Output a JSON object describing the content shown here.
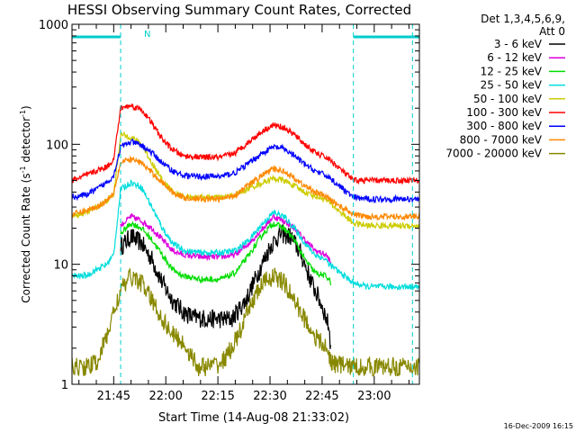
{
  "chart_data": {
    "type": "line",
    "title": "HESSI Observing Summary Count Rates, Corrected",
    "xlabel": "Start Time (14-Aug-08 21:33:02)",
    "ylabel": "Corrected Count Rate (s",
    "ylabel_sup1": "-1",
    "ylabel_mid": " detector",
    "ylabel_sup2": "-1",
    "ylabel_end": ")",
    "yscale": "log",
    "ylim": [
      1,
      1000
    ],
    "xlim": [
      "21:33",
      "23:13"
    ],
    "xticks": [
      {
        "t": 105,
        "label": "21:45"
      },
      {
        "t": 120,
        "label": "22:00"
      },
      {
        "t": 135,
        "label": "22:15"
      },
      {
        "t": 150,
        "label": "22:30"
      },
      {
        "t": 165,
        "label": "22:45"
      },
      {
        "t": 180,
        "label": "23:00"
      }
    ],
    "yticks": [
      {
        "v": 1,
        "label": "1"
      },
      {
        "v": 10,
        "label": "10"
      },
      {
        "v": 100,
        "label": "100"
      },
      {
        "v": 1000,
        "label": "1000"
      }
    ],
    "legend_title_line1": "Det 1,3,4,5,6,9,",
    "legend_title_line2": "Att 0",
    "legend_position": "outside-right",
    "annotation_n": "N",
    "night_intervals": [
      [
        93,
        107
      ],
      [
        174,
        193
      ]
    ],
    "vertical_markers_t": [
      107,
      174,
      191
    ],
    "footer_date": "16-Dec-2009 16:15",
    "series": [
      {
        "name": "3 - 6 keV",
        "color": "#000000",
        "points": [
          [
            107,
            14
          ],
          [
            110,
            17
          ],
          [
            113,
            15
          ],
          [
            116,
            11
          ],
          [
            119,
            7
          ],
          [
            122,
            5
          ],
          [
            125,
            4
          ],
          [
            128,
            3.6
          ],
          [
            133,
            3.5
          ],
          [
            139,
            3.5
          ],
          [
            143,
            5
          ],
          [
            147,
            9
          ],
          [
            150,
            14
          ],
          [
            153,
            18
          ],
          [
            156,
            17
          ],
          [
            159,
            12
          ],
          [
            162,
            7
          ],
          [
            165,
            4.5
          ],
          [
            167,
            3
          ],
          [
            167.5,
            2
          ]
        ]
      },
      {
        "name": "6 - 12 keV",
        "color": "#dd00dd",
        "points": [
          [
            107,
            21
          ],
          [
            110,
            25
          ],
          [
            113,
            23
          ],
          [
            116,
            20
          ],
          [
            119,
            16
          ],
          [
            122,
            13
          ],
          [
            125,
            12
          ],
          [
            130,
            11.5
          ],
          [
            136,
            11.5
          ],
          [
            140,
            12
          ],
          [
            144,
            15
          ],
          [
            148,
            20
          ],
          [
            151,
            25
          ],
          [
            154,
            23
          ],
          [
            157,
            20
          ],
          [
            160,
            16
          ],
          [
            163,
            13
          ],
          [
            166,
            12
          ],
          [
            167,
            11
          ],
          [
            167.5,
            10
          ]
        ]
      },
      {
        "name": "12 - 25 keV",
        "color": "#00dd00",
        "points": [
          [
            107,
            18
          ],
          [
            110,
            22
          ],
          [
            113,
            20
          ],
          [
            116,
            16
          ],
          [
            119,
            12
          ],
          [
            122,
            9
          ],
          [
            125,
            8
          ],
          [
            130,
            7.5
          ],
          [
            136,
            7.5
          ],
          [
            140,
            8.5
          ],
          [
            144,
            12
          ],
          [
            148,
            18
          ],
          [
            151,
            22
          ],
          [
            154,
            20
          ],
          [
            157,
            16
          ],
          [
            160,
            11
          ],
          [
            163,
            8.5
          ],
          [
            166,
            8
          ],
          [
            167,
            7.5
          ],
          [
            167.5,
            7
          ]
        ]
      },
      {
        "name": "25 - 50 keV",
        "color": "#00dddd",
        "points": [
          [
            93,
            8
          ],
          [
            97,
            8
          ],
          [
            100,
            9
          ],
          [
            103,
            10
          ],
          [
            105,
            12
          ],
          [
            107,
            42
          ],
          [
            110,
            48
          ],
          [
            113,
            44
          ],
          [
            116,
            30
          ],
          [
            119,
            20
          ],
          [
            122,
            15
          ],
          [
            125,
            13
          ],
          [
            130,
            12.5
          ],
          [
            136,
            12.5
          ],
          [
            140,
            13
          ],
          [
            144,
            16
          ],
          [
            148,
            22
          ],
          [
            151,
            27
          ],
          [
            154,
            25
          ],
          [
            157,
            20
          ],
          [
            160,
            15
          ],
          [
            163,
            12
          ],
          [
            166,
            11
          ],
          [
            167,
            10
          ],
          [
            174,
            7
          ],
          [
            178,
            6.5
          ],
          [
            185,
            6.5
          ],
          [
            193,
            6.5
          ]
        ]
      },
      {
        "name": "50 - 100 keV",
        "color": "#cccc00",
        "points": [
          [
            93,
            25
          ],
          [
            97,
            27
          ],
          [
            100,
            30
          ],
          [
            103,
            34
          ],
          [
            105,
            38
          ],
          [
            107,
            120
          ],
          [
            110,
            115
          ],
          [
            113,
            100
          ],
          [
            116,
            70
          ],
          [
            119,
            50
          ],
          [
            122,
            40
          ],
          [
            125,
            37
          ],
          [
            130,
            36
          ],
          [
            136,
            36
          ],
          [
            140,
            38
          ],
          [
            144,
            43
          ],
          [
            148,
            48
          ],
          [
            151,
            52
          ],
          [
            154,
            50
          ],
          [
            157,
            45
          ],
          [
            160,
            40
          ],
          [
            163,
            37
          ],
          [
            166,
            35
          ],
          [
            167,
            33
          ],
          [
            174,
            22
          ],
          [
            178,
            21
          ],
          [
            185,
            21
          ],
          [
            193,
            21
          ]
        ]
      },
      {
        "name": "100 - 300 keV",
        "color": "#ff0000",
        "points": [
          [
            93,
            50
          ],
          [
            97,
            55
          ],
          [
            100,
            60
          ],
          [
            103,
            65
          ],
          [
            105,
            75
          ],
          [
            107,
            200
          ],
          [
            110,
            210
          ],
          [
            113,
            195
          ],
          [
            116,
            150
          ],
          [
            119,
            110
          ],
          [
            122,
            90
          ],
          [
            125,
            80
          ],
          [
            130,
            78
          ],
          [
            136,
            78
          ],
          [
            140,
            85
          ],
          [
            144,
            105
          ],
          [
            148,
            130
          ],
          [
            151,
            145
          ],
          [
            154,
            138
          ],
          [
            157,
            120
          ],
          [
            160,
            100
          ],
          [
            163,
            85
          ],
          [
            166,
            78
          ],
          [
            167,
            75
          ],
          [
            174,
            50
          ],
          [
            178,
            50
          ],
          [
            185,
            50
          ],
          [
            193,
            50
          ]
        ]
      },
      {
        "name": "300 - 800 keV",
        "color": "#0000ff",
        "points": [
          [
            93,
            36
          ],
          [
            97,
            38
          ],
          [
            100,
            42
          ],
          [
            103,
            48
          ],
          [
            105,
            55
          ],
          [
            107,
            95
          ],
          [
            110,
            105
          ],
          [
            113,
            98
          ],
          [
            116,
            85
          ],
          [
            119,
            70
          ],
          [
            122,
            60
          ],
          [
            125,
            55
          ],
          [
            130,
            54
          ],
          [
            136,
            54
          ],
          [
            140,
            58
          ],
          [
            144,
            70
          ],
          [
            148,
            85
          ],
          [
            151,
            95
          ],
          [
            154,
            92
          ],
          [
            157,
            80
          ],
          [
            160,
            68
          ],
          [
            163,
            60
          ],
          [
            166,
            55
          ],
          [
            167,
            53
          ],
          [
            174,
            36
          ],
          [
            178,
            35
          ],
          [
            185,
            35
          ],
          [
            193,
            35
          ]
        ]
      },
      {
        "name": "800 - 7000 keV",
        "color": "#ff8800",
        "points": [
          [
            93,
            26
          ],
          [
            97,
            28
          ],
          [
            100,
            30
          ],
          [
            103,
            34
          ],
          [
            105,
            40
          ],
          [
            107,
            70
          ],
          [
            110,
            75
          ],
          [
            113,
            70
          ],
          [
            116,
            58
          ],
          [
            119,
            48
          ],
          [
            122,
            40
          ],
          [
            125,
            36
          ],
          [
            130,
            35
          ],
          [
            136,
            35
          ],
          [
            140,
            38
          ],
          [
            144,
            46
          ],
          [
            148,
            56
          ],
          [
            151,
            62
          ],
          [
            154,
            60
          ],
          [
            157,
            52
          ],
          [
            160,
            45
          ],
          [
            163,
            40
          ],
          [
            166,
            37
          ],
          [
            167,
            35
          ],
          [
            174,
            26
          ],
          [
            178,
            25
          ],
          [
            185,
            25
          ],
          [
            193,
            25
          ]
        ]
      },
      {
        "name": "7000 - 20000 keV",
        "color": "#888800",
        "points": [
          [
            93,
            1.4
          ],
          [
            97,
            1.4
          ],
          [
            100,
            1.5
          ],
          [
            103,
            2.5
          ],
          [
            105,
            4
          ],
          [
            107,
            6
          ],
          [
            110,
            8
          ],
          [
            113,
            7
          ],
          [
            116,
            5
          ],
          [
            119,
            3.5
          ],
          [
            122,
            2.6
          ],
          [
            125,
            2.2
          ],
          [
            127,
            1.8
          ],
          [
            129,
            1.4
          ],
          [
            132,
            1.4
          ],
          [
            136,
            1.5
          ],
          [
            139,
            2
          ],
          [
            142,
            3
          ],
          [
            145,
            5
          ],
          [
            148,
            7
          ],
          [
            151,
            8
          ],
          [
            154,
            7
          ],
          [
            157,
            5
          ],
          [
            160,
            3.5
          ],
          [
            163,
            2.5
          ],
          [
            166,
            2
          ],
          [
            168,
            1.5
          ],
          [
            174,
            1.4
          ],
          [
            185,
            1.4
          ],
          [
            193,
            1.4
          ]
        ]
      }
    ]
  }
}
